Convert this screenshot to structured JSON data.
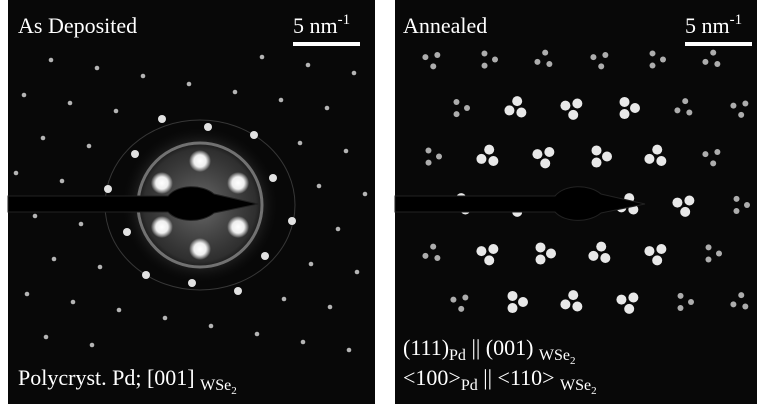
{
  "panels": [
    {
      "title": "As Deposited",
      "scale_bar": "5 nm",
      "scale_bar_exponent": "-1",
      "caption": [
        [
          {
            "text": "Polycryst. Pd; [001] ",
            "style": "normal"
          },
          {
            "text": "WSe",
            "style": "sub"
          },
          {
            "text": "2",
            "style": "subsub"
          }
        ]
      ]
    },
    {
      "title": "Annealed",
      "scale_bar": "5 nm",
      "scale_bar_exponent": "-1",
      "caption": [
        [
          {
            "text": "(111)",
            "style": "normal"
          },
          {
            "text": "Pd",
            "style": "sub"
          },
          {
            "text": " || (001) ",
            "style": "normal"
          },
          {
            "text": "WSe",
            "style": "sub"
          },
          {
            "text": "2",
            "style": "subsub"
          }
        ],
        [
          {
            "text": "<100>",
            "style": "normal"
          },
          {
            "text": "Pd",
            "style": "sub"
          },
          {
            "text": " || <110> ",
            "style": "normal"
          },
          {
            "text": "WSe",
            "style": "sub"
          },
          {
            "text": "2",
            "style": "subsub"
          }
        ]
      ]
    }
  ]
}
